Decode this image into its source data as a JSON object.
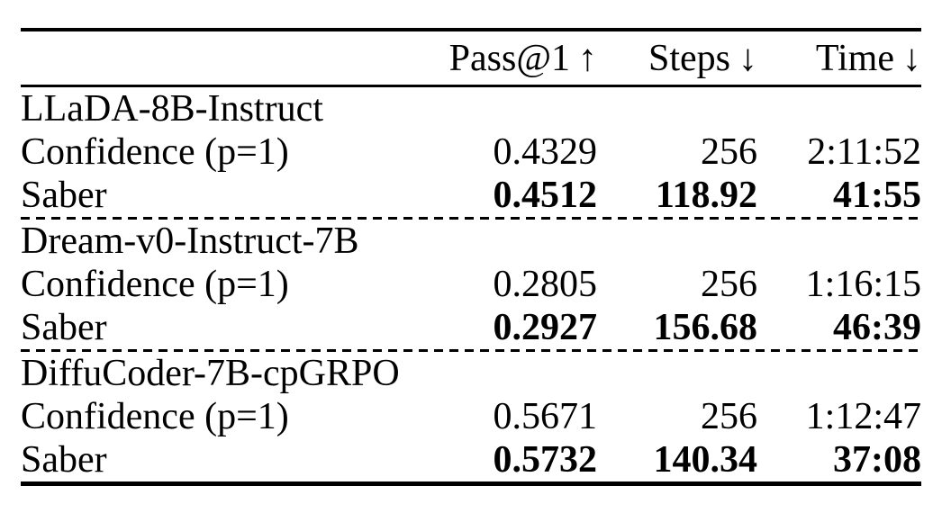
{
  "page": {
    "background_color": "#ffffff",
    "text_color": "#000000"
  },
  "table": {
    "columns": [
      {
        "label": "",
        "arrow": ""
      },
      {
        "label": "Pass@1",
        "arrow": "↑"
      },
      {
        "label": "Steps",
        "arrow": "↓"
      },
      {
        "label": "Time",
        "arrow": "↓"
      }
    ],
    "groups": [
      {
        "name": "LLaDA-8B-Instruct",
        "rows": [
          {
            "label": "Confidence (p=1)",
            "pass": "0.4329",
            "steps": "256",
            "time": "2:11:52",
            "bold": false
          },
          {
            "label": "Saber",
            "pass": "0.4512",
            "steps": "118.92",
            "time": "41:55",
            "bold": true
          }
        ]
      },
      {
        "name": "Dream-v0-Instruct-7B",
        "rows": [
          {
            "label": "Confidence (p=1)",
            "pass": "0.2805",
            "steps": "256",
            "time": "1:16:15",
            "bold": false
          },
          {
            "label": "Saber",
            "pass": "0.2927",
            "steps": "156.68",
            "time": "46:39",
            "bold": true
          }
        ]
      },
      {
        "name": "DiffuCoder-7B-cpGRPO",
        "rows": [
          {
            "label": "Confidence (p=1)",
            "pass": "0.5671",
            "steps": "256",
            "time": "1:12:47",
            "bold": false
          },
          {
            "label": "Saber",
            "pass": "0.5732",
            "steps": "140.34",
            "time": "37:08",
            "bold": true
          }
        ]
      }
    ]
  }
}
